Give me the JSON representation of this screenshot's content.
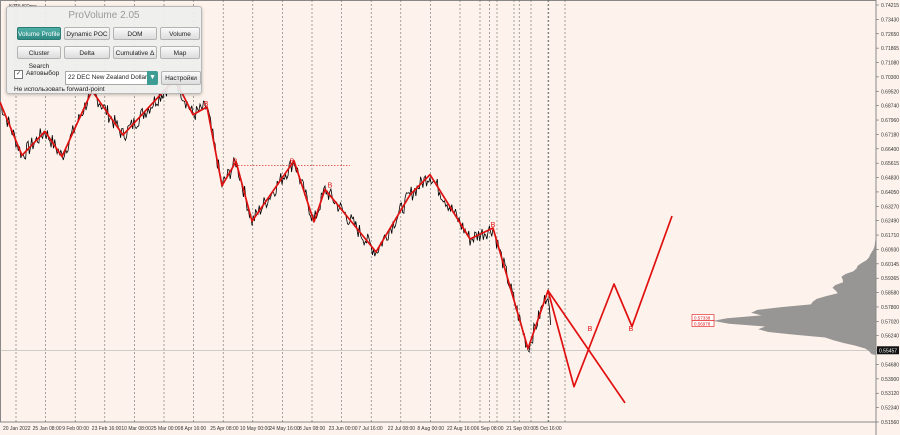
{
  "chart": {
    "symbol": "NZDUSDmo",
    "price_labels": [
      "0.74215",
      "0.73430",
      "0.72650",
      "0.71865",
      "0.71080",
      "0.70300",
      "0.69520",
      "0.68740",
      "0.67960",
      "0.67180",
      "0.66400",
      "0.65615",
      "0.64830",
      "0.64050",
      "0.63270",
      "0.62490",
      "0.61710",
      "0.60930",
      "0.60145",
      "0.59365",
      "0.58580",
      "0.57800",
      "0.57020",
      "0.56240",
      "0.55460",
      "0.54680",
      "0.53900",
      "0.53120",
      "0.52340",
      "0.51560"
    ],
    "current_price": "0.55457",
    "level_labels": [
      "0.57338",
      "0.56978"
    ],
    "date_labels": [
      "20 Jan 2022",
      "25 Jan 08:00",
      "9 Feb 00:00",
      "23 Feb 16:00",
      "10 Mar 08:00",
      "25 Mar 00:00",
      "8 Apr 16:00",
      "25 Apr 08:00",
      "10 May 00:00",
      "24 May 16:00",
      "8 Jun 08:00",
      "23 Jun 00:00",
      "7 Jul 16:00",
      "22 Jul 08:00",
      "8 Aug 00:00",
      "22 Aug 16:00",
      "6 Sep 08:00",
      "21 Sep 00:00",
      "5 Oct 16:00"
    ],
    "wave_label": "B"
  },
  "panel": {
    "title": "ProVolume 2.05",
    "buttons": [
      "Volume Profile",
      "Dynamic POC",
      "DOM",
      "Volume",
      "Cluster Search",
      "Delta",
      "Cumulative Δ",
      "Map"
    ],
    "checkbox_label": "Автовыбор",
    "checkbox_mark": "✓",
    "instrument": "22 DEC New Zealand Dollar",
    "settings_label": "Настройки",
    "forward_note": "Не использовать forward-point"
  },
  "colors": {
    "wave": "#e01010",
    "price": "#000000",
    "profile": "#8c8c8c",
    "background": "#fdf3ec"
  },
  "chart_data": {
    "type": "line",
    "ylim": [
      0.5156,
      0.74215
    ],
    "waves": [
      {
        "name": "",
        "points": [
          [
            0,
            0.6894
          ],
          [
            22,
            0.6605
          ],
          [
            45,
            0.6735
          ],
          [
            62,
            0.6598
          ],
          [
            92,
            0.6956
          ],
          [
            123,
            0.6715
          ],
          [
            175,
            0.7019
          ],
          [
            193,
            0.6825
          ],
          [
            207,
            0.6868
          ],
          [
            222,
            0.644
          ],
          [
            236,
            0.6571
          ],
          [
            252,
            0.6247
          ],
          [
            294,
            0.6575
          ],
          [
            314,
            0.6243
          ],
          [
            325,
            0.642
          ],
          [
            376,
            0.608
          ],
          [
            410,
            0.639
          ],
          [
            430,
            0.65
          ],
          [
            470,
            0.615
          ],
          [
            493,
            0.621
          ],
          [
            528,
            0.5555
          ],
          [
            548,
            0.587
          ],
          [
            574,
            0.5348
          ],
          [
            614,
            0.5906
          ],
          [
            632,
            0.5675
          ],
          [
            672,
            0.6275
          ]
        ]
      },
      {
        "name": "",
        "points": [
          [
            548,
            0.587
          ],
          [
            625,
            0.526
          ]
        ]
      }
    ],
    "wave_label_points": [
      [
        206,
        0.6862
      ],
      [
        235,
        0.655
      ],
      [
        292,
        0.655
      ],
      [
        330,
        0.642
      ],
      [
        493,
        0.6205
      ],
      [
        590,
        0.564
      ],
      [
        631,
        0.564
      ]
    ],
    "dotted_level": 0.655
  }
}
